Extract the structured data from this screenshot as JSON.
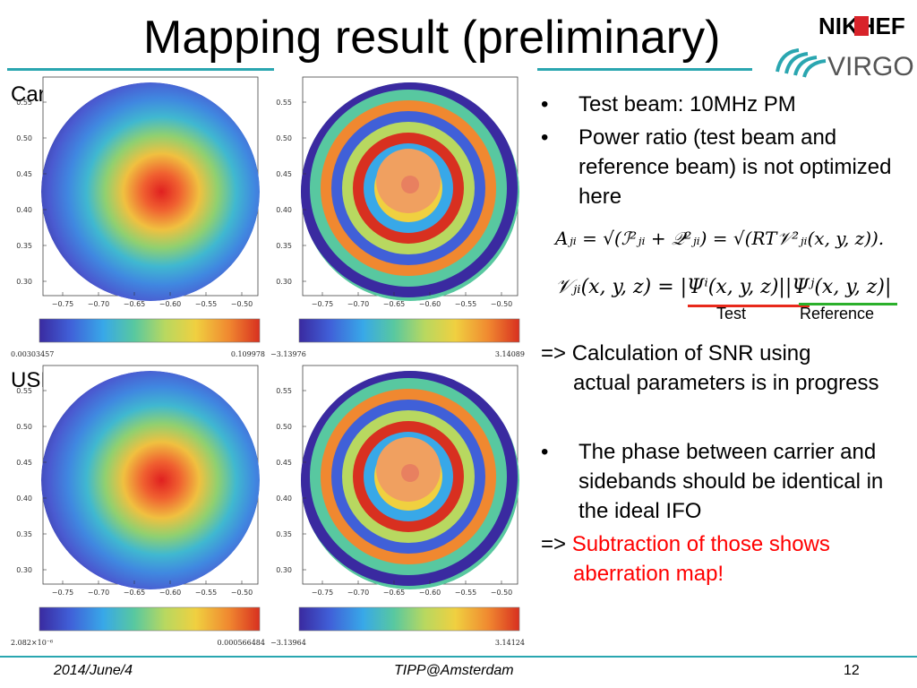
{
  "title": "Mapping result (preliminary)",
  "logo": {
    "text_top": "NIKHEF",
    "text_bottom": "VIRGO"
  },
  "row_labels": {
    "carrier": "Carrier",
    "usb": "USB"
  },
  "axes": {
    "x_ticks": [
      "−0.75",
      "−0.70",
      "−0.65",
      "−0.60",
      "−0.55",
      "−0.50"
    ],
    "y_ticks": [
      "0.55",
      "0.50",
      "0.45",
      "0.40",
      "0.35",
      "0.30"
    ]
  },
  "panels": [
    {
      "id": "carrier-amplitude",
      "min": "0.00303457",
      "max": "0.109978"
    },
    {
      "id": "carrier-phase",
      "min": "−3.13976",
      "max": "3.14089"
    },
    {
      "id": "usb-amplitude",
      "min": "2.082×10⁻⁶",
      "max": "0.000566484"
    },
    {
      "id": "usb-phase",
      "min": "−3.13964",
      "max": "3.14124"
    }
  ],
  "bullets": {
    "b1": "Test beam: 10MHz PM",
    "b2": "Power ratio (test beam and reference beam) is not optimized here",
    "arrow1_prefix": "=> Calculation of SNR using",
    "arrow1_rest": "actual parameters is in progress",
    "b3": "The phase between carrier and sidebands should be identical in the ideal IFO",
    "arrow2_prefix": "=>",
    "arrow2_red_1": "Subtraction of those shows",
    "arrow2_red_2": "aberration map!"
  },
  "formula": {
    "line1": "Aⱼᵢ = √(ℐ²ⱼᵢ + 𝒬²ⱼᵢ) = √(RT𝒱²ⱼᵢ(x, y, z)).",
    "line2": "𝒱ⱼᵢ(x, y, z) = |Ψⁱ(x, y, z)||Ψʲ(x, y, z)|",
    "label_test": "Test",
    "label_reference": "Reference"
  },
  "footer": {
    "date": "2014/June/4",
    "event": "TIPP@Amsterdam",
    "page": "12"
  },
  "colors": {
    "teal_line": "#2aa6b0",
    "red_text": "#ff0000",
    "test_underline": "#e8291b",
    "ref_underline": "#2bb02b"
  }
}
